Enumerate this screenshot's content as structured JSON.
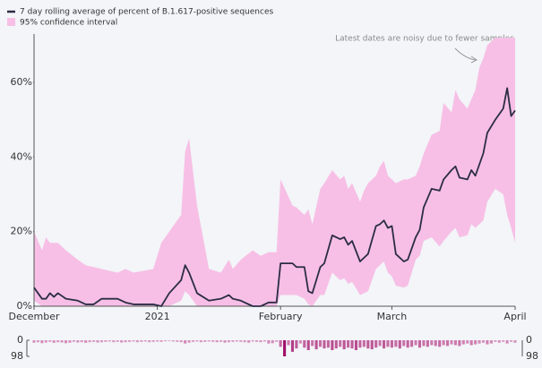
{
  "chart_data": [
    {
      "type": "line",
      "legend": "top-left",
      "annotation": "Latest dates are noisy due to fewer samples",
      "x": [
        0,
        2,
        3,
        4,
        5,
        6,
        8,
        11,
        13,
        15,
        17,
        21,
        23,
        25,
        30,
        32,
        34,
        37,
        38,
        39,
        41,
        44,
        47,
        49,
        50,
        52,
        55,
        57,
        59,
        61,
        62,
        65,
        66,
        68,
        69,
        70,
        72,
        73,
        75,
        77,
        78,
        79,
        80,
        82,
        83,
        84,
        86,
        87,
        88,
        89,
        90,
        91,
        93,
        94,
        96,
        97,
        98,
        100,
        102,
        103,
        105,
        106,
        107,
        109,
        110,
        111,
        112,
        113,
        114,
        116,
        118,
        119,
        120,
        121
      ],
      "series": [
        {
          "name": "7 day rolling average of percent of B.1.617-positive sequences",
          "color": "#2b2d45",
          "values": [
            5,
            2,
            2,
            3.5,
            2.5,
            3.5,
            2,
            1.5,
            0.5,
            0.5,
            2,
            2,
            1,
            0.5,
            0.5,
            0,
            3.5,
            7,
            11,
            9,
            3.5,
            1.5,
            2,
            3,
            2,
            1.5,
            0,
            0,
            1,
            1,
            11.5,
            11.5,
            10.5,
            10.5,
            4,
            3.5,
            10.5,
            11.5,
            19,
            18,
            18.5,
            16.5,
            17.5,
            12,
            13,
            14,
            21.5,
            22,
            23,
            21,
            21.5,
            14,
            12,
            12.5,
            18.5,
            20.5,
            26.5,
            31.5,
            31,
            34,
            36.5,
            37.5,
            34.5,
            34,
            36.5,
            35,
            38,
            41,
            46.5,
            50,
            53,
            58.5,
            51,
            52.5
          ]
        }
      ],
      "band": {
        "name": "95% confidence interval",
        "color": "#f7bfe6",
        "upper": [
          20,
          15,
          18.5,
          17,
          17,
          17,
          15,
          12.5,
          11,
          10.5,
          10,
          9,
          10,
          9,
          10,
          17,
          20,
          24.5,
          41.5,
          45,
          27,
          10,
          9,
          12.5,
          10,
          12.5,
          15,
          13.5,
          14.5,
          14.5,
          34,
          27,
          26.5,
          24.5,
          26,
          22,
          31.5,
          33,
          36.5,
          34,
          35,
          31.5,
          33,
          28,
          31,
          33,
          35,
          37.5,
          39,
          35,
          34,
          33,
          34,
          34,
          35,
          37.5,
          41,
          46,
          47,
          54.5,
          52,
          58,
          55.5,
          53,
          55.5,
          58,
          64,
          66.5,
          70,
          72,
          72,
          72,
          72,
          72
        ],
        "lower": [
          1.5,
          0,
          0,
          0,
          0,
          0,
          0,
          0,
          0,
          0,
          0,
          0,
          0,
          0,
          0,
          0,
          0,
          1.5,
          4,
          3,
          0,
          0,
          0,
          0,
          0,
          0,
          0,
          0,
          0,
          0,
          3,
          3,
          3,
          2,
          0.5,
          0,
          3,
          3,
          9,
          7,
          7.5,
          6,
          6.5,
          3,
          3.5,
          4,
          10,
          11,
          12,
          9,
          8,
          5.5,
          5,
          5.5,
          12.5,
          13.5,
          17.5,
          18.5,
          16,
          17.5,
          20,
          21,
          18.5,
          19,
          22,
          21,
          22,
          23,
          28,
          31.5,
          30,
          24.5,
          21,
          17
        ]
      },
      "xlim": [
        0,
        121
      ],
      "xticks": [
        {
          "value": 0,
          "label": "December"
        },
        {
          "value": 31,
          "label": "2021"
        },
        {
          "value": 62,
          "label": "February"
        },
        {
          "value": 90,
          "label": "March"
        },
        {
          "value": 121,
          "label": "April"
        }
      ],
      "ylim": [
        0,
        73
      ],
      "yticks": [
        {
          "value": 0,
          "label": "0%"
        },
        {
          "value": 20,
          "label": "20%"
        },
        {
          "value": 40,
          "label": "40%"
        },
        {
          "value": 60,
          "label": "60%"
        }
      ],
      "grid": false
    },
    {
      "type": "bar",
      "colors": [
        "#e0aacd",
        "#a0106a"
      ],
      "x": [
        0,
        1,
        2,
        3,
        4,
        5,
        6,
        7,
        8,
        9,
        10,
        11,
        12,
        13,
        14,
        15,
        16,
        17,
        18,
        19,
        20,
        21,
        22,
        23,
        24,
        25,
        26,
        27,
        28,
        29,
        30,
        31,
        32,
        33,
        34,
        35,
        36,
        37,
        38,
        39,
        40,
        41,
        42,
        43,
        44,
        45,
        46,
        47,
        48,
        49,
        50,
        51,
        52,
        53,
        54,
        55,
        56,
        57,
        58,
        59,
        60,
        61,
        62,
        63,
        64,
        65,
        66,
        67,
        68,
        69,
        70,
        71,
        72,
        73,
        74,
        75,
        76,
        77,
        78,
        79,
        80,
        81,
        82,
        83,
        84,
        85,
        86,
        87,
        88,
        89,
        90,
        91,
        92,
        93,
        94,
        95,
        96,
        97,
        98,
        99,
        100,
        101,
        102,
        103,
        104,
        105,
        106,
        107,
        108,
        109,
        110,
        111,
        112,
        113,
        114,
        115,
        116,
        117,
        118,
        119,
        120,
        121
      ],
      "values": [
        15,
        12,
        18,
        14,
        10,
        16,
        12,
        14,
        18,
        15,
        10,
        14,
        12,
        16,
        12,
        10,
        14,
        12,
        10,
        8,
        12,
        10,
        14,
        12,
        10,
        8,
        12,
        10,
        8,
        12,
        10,
        8,
        10,
        6,
        5,
        8,
        10,
        12,
        20,
        15,
        10,
        8,
        12,
        10,
        8,
        10,
        12,
        10,
        15,
        12,
        10,
        8,
        10,
        12,
        15,
        8,
        10,
        12,
        8,
        20,
        18,
        10,
        40,
        98,
        30,
        70,
        50,
        20,
        45,
        60,
        35,
        55,
        40,
        50,
        45,
        60,
        50,
        40,
        55,
        45,
        50,
        60,
        45,
        40,
        50,
        55,
        45,
        35,
        50,
        40,
        45,
        40,
        50,
        35,
        45,
        40,
        30,
        45,
        35,
        40,
        30,
        35,
        40,
        30,
        35,
        25,
        30,
        35,
        25,
        20,
        30,
        25,
        20,
        15,
        25,
        20,
        10,
        15,
        10,
        20,
        10,
        15
      ],
      "xlim": [
        0,
        121
      ],
      "ylim": [
        0,
        98
      ],
      "yticks": [
        0,
        98
      ]
    }
  ]
}
